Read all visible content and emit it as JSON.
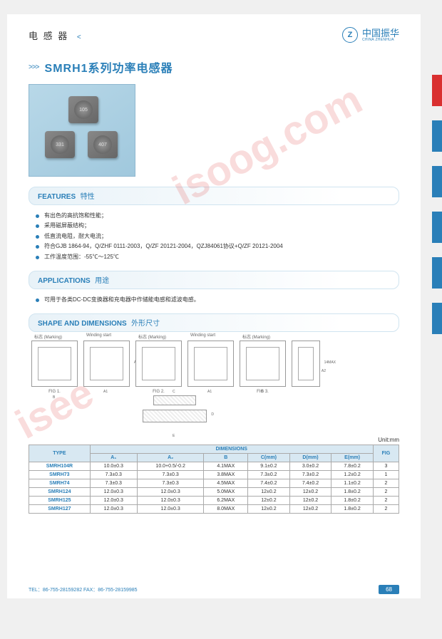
{
  "header": {
    "category": "电 感 器",
    "brand_cn": "中国振华",
    "brand_en": "CHINA ZHENHUA"
  },
  "title": "SMRH1系列功率电感器",
  "product": {
    "chip_labels": [
      "105",
      "331",
      "407"
    ]
  },
  "sections": {
    "features": {
      "en": "FEATURES",
      "cn": "特性"
    },
    "applications": {
      "en": "APPLICATIONS",
      "cn": "用途"
    },
    "shape": {
      "en": "SHAPE AND DIMENSIONS",
      "cn": "外形尺寸"
    }
  },
  "features_list": [
    "有出色的高抗饱和性能；",
    "采用磁屏蔽结构；",
    "低直流电阻，耐大电流；",
    "符合GJB 1864-94，Q/ZHF 0111-2003，Q/ZF 20121-2004，QZJ84061协议+Q/ZF 20121-2004",
    "工作温度范围：-55℃～125℃"
  ],
  "applications_list": [
    "可用于各类DC-DC变换器和充电器中作储能电感和滤波电感。"
  ],
  "diagrams": {
    "labels": [
      "标志 (Marking)",
      "Winding start",
      "标志 (Marking)",
      "Winding start",
      "标志 (Marking)"
    ],
    "figs": [
      "FIG 1.",
      "FIG 2.",
      "FIG 3."
    ],
    "dims": [
      "A1",
      "A2",
      "B",
      "C",
      "D",
      "E",
      "14MAX"
    ]
  },
  "table": {
    "unit": "Unit:mm",
    "head": {
      "type": "TYPE",
      "dimensions": "DIMENSIONS",
      "fig": "FIG",
      "cols": [
        "A₁",
        "A₂",
        "B",
        "C(mm)",
        "D(mm)",
        "E(mm)"
      ]
    },
    "rows": [
      {
        "type": "SMRH104R",
        "cells": [
          "10.0±0.3",
          "10.0+0.5/-0.2",
          "4.1MAX",
          "9.1±0.2",
          "3.0±0.2",
          "7.8±0.2",
          "3"
        ]
      },
      {
        "type": "SMRH73",
        "cells": [
          "7.3±0.3",
          "7.3±0.3",
          "3.8MAX",
          "7.3±0.2",
          "7.3±0.2",
          "1.2±0.2",
          "1"
        ]
      },
      {
        "type": "SMRH74",
        "cells": [
          "7.3±0.3",
          "7.3±0.3",
          "4.5MAX",
          "7.4±0.2",
          "7.4±0.2",
          "1.1±0.2",
          "2"
        ]
      },
      {
        "type": "SMRH124",
        "cells": [
          "12.0±0.3",
          "12.0±0.3",
          "5.0MAX",
          "12±0.2",
          "12±0.2",
          "1.8±0.2",
          "2"
        ]
      },
      {
        "type": "SMRH125",
        "cells": [
          "12.0±0.3",
          "12.0±0.3",
          "6.2MAX",
          "12±0.2",
          "12±0.2",
          "1.8±0.2",
          "2"
        ]
      },
      {
        "type": "SMRH127",
        "cells": [
          "12.0±0.3",
          "12.0±0.3",
          "8.0MAX",
          "12±0.2",
          "12±0.2",
          "1.8±0.2",
          "2"
        ]
      }
    ]
  },
  "footer": {
    "contact": "TEL：86-755-28159282   FAX：86-755-28159985",
    "page": "68"
  },
  "watermark": "isoog.com",
  "watermark2": "isee"
}
